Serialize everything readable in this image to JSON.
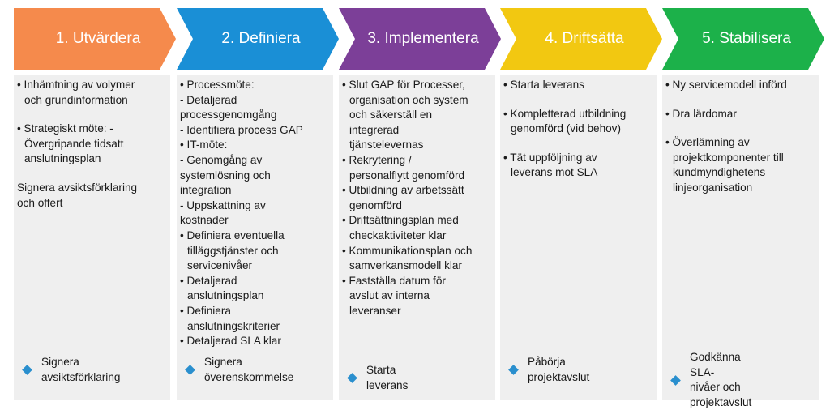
{
  "phases": [
    {
      "title": "1. Utvärdera",
      "color": "#f58a4c",
      "items": [
        {
          "text": "• Inhämtning av volymer\n  och grundinformation"
        },
        {
          "gap": true
        },
        {
          "text": "• Strategiskt möte:                  -\n  Övergripande tidsatt\n  anslutningsplan"
        },
        {
          "gap": true
        },
        {
          "text": "  Signera avsiktsförklaring\n   och offert"
        }
      ],
      "milestone": "Signera\navsiktsförklaring"
    },
    {
      "title": "2. Definiera",
      "color": "#1a8fd6",
      "items": [
        {
          "text": "• Processmöte:"
        },
        {
          "text": "  - Detaljerad\n  processgenomgång"
        },
        {
          "text": "  - Identifiera process GAP"
        },
        {
          "text": "• IT-möte:"
        },
        {
          "text": "  - Genomgång av\n  systemlösning och\n  integration"
        },
        {
          "text": "  - Uppskattning av\n  kostnader"
        },
        {
          "text": "• Definiera  eventuella\n  tilläggstjänster och\n  servicenivåer"
        },
        {
          "text": "• Detaljerad\n  anslutningsplan"
        },
        {
          "text": "• Definiera\n  anslutningskriterier"
        },
        {
          "text": "• Detaljerad SLA klar"
        }
      ],
      "milestone": "Signera\növerenskommelse"
    },
    {
      "title": "3. Implementera",
      "color": "#7c3f98",
      "items": [
        {
          "text": "• Slut GAP för Processer,\n  organisation och system\n  och säkerställ en\n  integrerad\n  tjänstelevernas"
        },
        {
          "text": "• Rekrytering /\n  personalflytt genomförd"
        },
        {
          "text": "•  Utbildning av arbetssätt\n  genomförd"
        },
        {
          "text": "• Driftsättningsplan med\n  checkaktiviteter klar"
        },
        {
          "text": "• Kommunikationsplan och\n  samverkansmodell klar"
        },
        {
          "text": "• Fastställa datum för\n  avslut av interna\n  leveranser"
        }
      ],
      "milestone": "Starta leverans"
    },
    {
      "title": "4. Driftsätta",
      "color": "#f2c811",
      "items": [
        {
          "text": "• Starta leverans"
        },
        {
          "gap": true
        },
        {
          "text": "• Kompletterad utbildning\n  genomförd (vid behov)"
        },
        {
          "gap": true
        },
        {
          "text": "• Tät uppföljning av\n  leverans mot SLA"
        }
      ],
      "milestone": "Påbörja\nprojektavslut"
    },
    {
      "title": "5. Stabilisera",
      "color": "#1cb14a",
      "items": [
        {
          "text": "• Ny servicemodell införd"
        },
        {
          "gap": true
        },
        {
          "text": "• Dra lärdomar"
        },
        {
          "gap": true
        },
        {
          "text": "• Överlämning av\n  projektkomponenter till\n  kundmyndighetens\n  linjeorganisation"
        }
      ],
      "milestone": "Godkänna SLA-\nnivåer och\nprojektavslut"
    }
  ]
}
